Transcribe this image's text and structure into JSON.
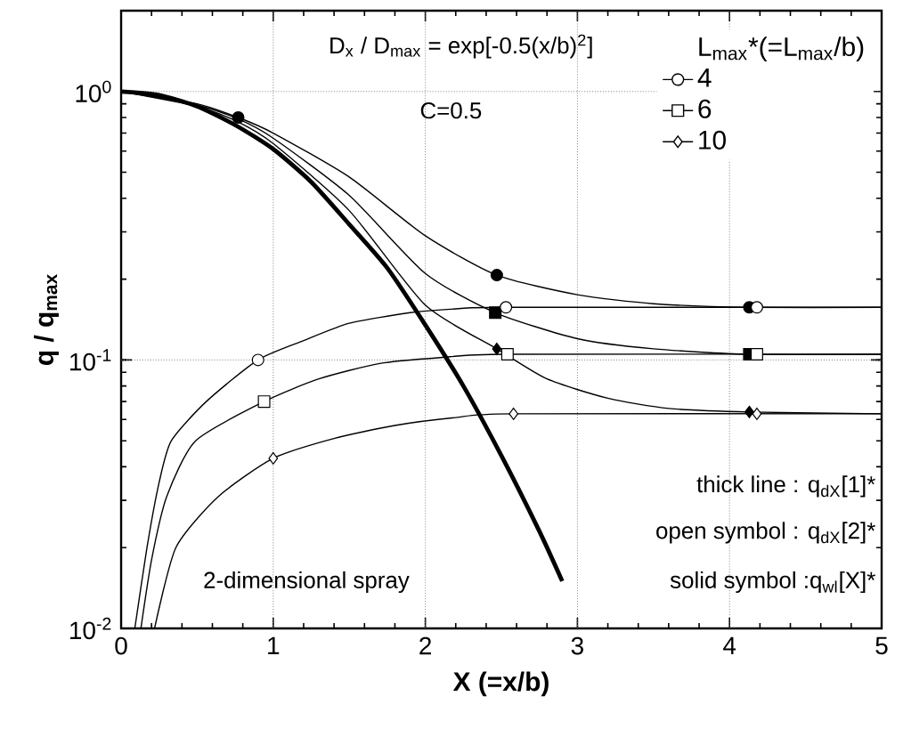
{
  "chart_data": {
    "type": "line",
    "xlabel": "**X   (=x/b)**",
    "ylabel": "**q / q$_{max}$**",
    "legend_title": "L$_{max}$*(=L$_{max}$/b)",
    "legend": "top right",
    "log": "y",
    "xlim": [
      0,
      5
    ],
    "ylim": [
      0.01,
      2
    ],
    "xticks": [
      0,
      1,
      2,
      3,
      4,
      5
    ],
    "yticks": [
      {
        "value": 0.01,
        "label": "10$^{-2}$"
      },
      {
        "value": 0.1,
        "label": "10$^{-1}$"
      },
      {
        "value": 1,
        "label": "10$^{0}$"
      }
    ],
    "annotations": [
      "D$_{x}$ / D$_{max}$ = exp[-0.5(x/b)$^{2}$]",
      "C=0.5",
      "thick line : q$_{dX}$[1]*",
      "open symbol : q$_{dX}$[2]*",
      "solid symbol :q$_{wl}$[X]*",
      "2-dimensional  spray"
    ],
    "ref_lines": [
      {
        "axis": "y",
        "value": 1,
        "line_style": "dotted"
      },
      {
        "axis": "y",
        "value": 0.1,
        "line_style": "dotted"
      },
      {
        "axis": "x",
        "value": 1,
        "line_style": "dotted"
      },
      {
        "axis": "x",
        "value": 2,
        "line_style": "dotted"
      },
      {
        "axis": "x",
        "value": 3,
        "line_style": "dotted"
      },
      {
        "axis": "x",
        "value": 4,
        "line_style": "dotted"
      }
    ],
    "series": [
      {
        "color": "#000000",
        "x": [
          0,
          0.25,
          0.5,
          0.75,
          1,
          1.25,
          1.5,
          1.75,
          2,
          2.25,
          2.5,
          2.75,
          2.9
        ],
        "values": [
          1,
          0.97,
          0.88,
          0.75,
          0.61,
          0.46,
          0.32,
          0.22,
          0.135,
          0.08,
          0.044,
          0.023,
          0.015
        ]
      },
      {
        "name": "4",
        "color": "#000000",
        "x": [
          0.09,
          0.17,
          0.25,
          0.33,
          0.56,
          0.9,
          1.2,
          1.5,
          1.9,
          2.2,
          2.53,
          5
        ],
        "values": [
          0.01,
          0.02,
          0.035,
          0.05,
          0.07,
          0.1,
          0.118,
          0.137,
          0.15,
          0.155,
          0.157,
          0.157
        ]
      },
      {
        "type": "scatter",
        "marker": "circle",
        "color": "#ffffff",
        "x": [
          0.9,
          2.53,
          4.18
        ],
        "values": [
          0.1,
          0.157,
          0.157
        ]
      },
      {
        "color": "#000000",
        "x": [
          0,
          0.5,
          0.77,
          1,
          1.5,
          2,
          2.47,
          3,
          3.5,
          4.13,
          5
        ],
        "values": [
          1,
          0.9,
          0.8,
          0.7,
          0.48,
          0.29,
          0.207,
          0.175,
          0.162,
          0.157,
          0.157
        ]
      },
      {
        "type": "scatter",
        "marker": "circle",
        "color": "#000000",
        "x": [
          0.77,
          2.47,
          4.13
        ],
        "values": [
          0.8,
          0.207,
          0.157
        ]
      },
      {
        "name": "6",
        "color": "#000000",
        "x": [
          0.13,
          0.2,
          0.3,
          0.49,
          0.94,
          1.3,
          1.7,
          2.1,
          2.54,
          5
        ],
        "values": [
          0.01,
          0.018,
          0.031,
          0.05,
          0.07,
          0.085,
          0.097,
          0.102,
          0.105,
          0.105
        ]
      },
      {
        "type": "scatter",
        "marker": "square",
        "color": "#ffffff",
        "x": [
          0.94,
          2.54,
          4.18
        ],
        "values": [
          0.07,
          0.105,
          0.105
        ]
      },
      {
        "color": "#000000",
        "x": [
          0,
          0.5,
          0.77,
          1,
          1.5,
          2,
          2.46,
          3,
          3.5,
          4.13,
          5
        ],
        "values": [
          1,
          0.89,
          0.79,
          0.67,
          0.41,
          0.21,
          0.15,
          0.12,
          0.11,
          0.105,
          0.105
        ]
      },
      {
        "type": "scatter",
        "marker": "square",
        "color": "#000000",
        "x": [
          2.46,
          4.13
        ],
        "values": [
          0.15,
          0.105
        ]
      },
      {
        "name": "10",
        "color": "#000000",
        "x": [
          0.22,
          0.36,
          0.64,
          1,
          1.4,
          1.8,
          2.2,
          2.58,
          5
        ],
        "values": [
          0.01,
          0.02,
          0.031,
          0.043,
          0.051,
          0.057,
          0.061,
          0.063,
          0.063
        ]
      },
      {
        "type": "scatter",
        "marker": "diamond",
        "color": "#ffffff",
        "x": [
          1,
          2.58,
          4.18
        ],
        "values": [
          0.043,
          0.063,
          0.063
        ]
      },
      {
        "color": "#000000",
        "x": [
          0,
          0.5,
          0.77,
          1,
          1.5,
          2,
          2.47,
          2.8,
          3.2,
          3.6,
          4.13,
          5
        ],
        "values": [
          1,
          0.88,
          0.77,
          0.64,
          0.36,
          0.16,
          0.11,
          0.085,
          0.072,
          0.066,
          0.064,
          0.063
        ]
      },
      {
        "type": "scatter",
        "marker": "diamond",
        "color": "#000000",
        "x": [
          2.47,
          4.13
        ],
        "values": [
          0.11,
          0.064
        ]
      }
    ]
  }
}
